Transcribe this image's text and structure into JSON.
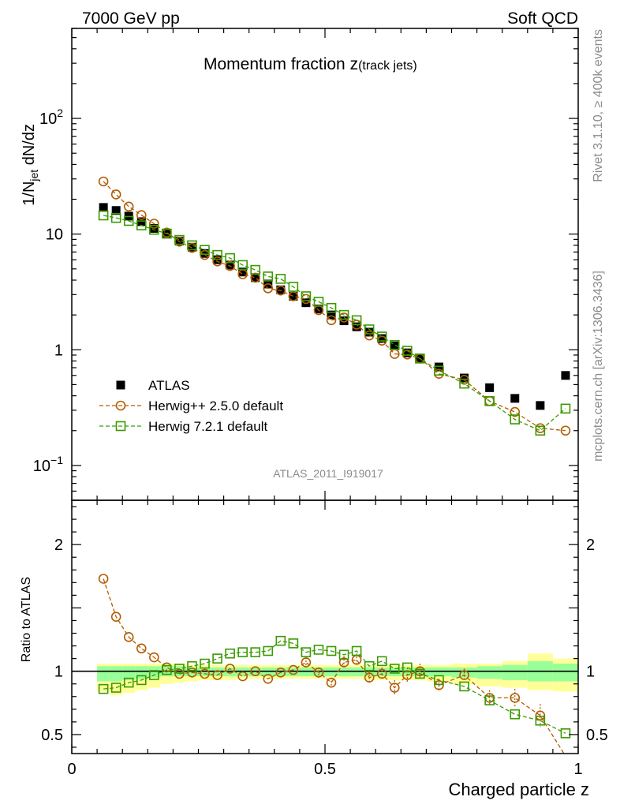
{
  "header": {
    "left": "7000 GeV pp",
    "right": "Soft QCD"
  },
  "side_text": {
    "rivet": "Rivet 3.1.10, ≥ 400k events",
    "mcplots": "mcplots.cern.ch [arXiv:1306.3436]"
  },
  "chart_data": {
    "type": "line",
    "title_main": "Momentum fraction ",
    "title_var": "z",
    "title_sub": "(track jets)",
    "analysis_id": "ATLAS_2011_I919017",
    "xlabel": "Charged particle z",
    "ylabel_prefix": "1/N",
    "ylabel_sub": "jet",
    "ylabel_suffix": " dN/dz",
    "ratio_ylabel": "Ratio to ATLAS",
    "xlim": [
      0,
      1
    ],
    "ylim": [
      0.05,
      600
    ],
    "ratio_ylim": [
      0.35,
      2.35
    ],
    "x_ticks": [
      {
        "value": 0,
        "label": "0"
      },
      {
        "value": 0.5,
        "label": "0.5"
      },
      {
        "value": 1,
        "label": "1"
      }
    ],
    "y_ticks": [
      {
        "value": 0.1,
        "label": "10",
        "sup": "−1"
      },
      {
        "value": 1,
        "label": "1",
        "sup": ""
      },
      {
        "value": 10,
        "label": "10",
        "sup": ""
      },
      {
        "value": 100,
        "label": "10",
        "sup": "2"
      }
    ],
    "ratio_ticks": [
      {
        "value": 0.5,
        "label": "0.5"
      },
      {
        "value": 1,
        "label": "1"
      },
      {
        "value": 2,
        "label": "2"
      }
    ],
    "x": [
      0.0625,
      0.0875,
      0.1125,
      0.1375,
      0.1625,
      0.1875,
      0.2125,
      0.2375,
      0.2625,
      0.2875,
      0.3125,
      0.3375,
      0.3625,
      0.3875,
      0.4125,
      0.4375,
      0.4625,
      0.4875,
      0.5125,
      0.5375,
      0.5625,
      0.5875,
      0.6125,
      0.6375,
      0.6625,
      0.6875,
      0.725,
      0.775,
      0.825,
      0.875,
      0.925,
      0.975
    ],
    "bin_edges": [
      0.05,
      0.075,
      0.1,
      0.125,
      0.15,
      0.175,
      0.2,
      0.225,
      0.25,
      0.275,
      0.3,
      0.325,
      0.35,
      0.375,
      0.4,
      0.425,
      0.45,
      0.475,
      0.5,
      0.525,
      0.55,
      0.575,
      0.6,
      0.625,
      0.65,
      0.675,
      0.7,
      0.75,
      0.8,
      0.85,
      0.9,
      0.95,
      1.0
    ],
    "band_outer": {
      "lo": [
        0.84,
        0.81,
        0.83,
        0.85,
        0.87,
        0.9,
        0.91,
        0.92,
        0.93,
        0.93,
        0.93,
        0.94,
        0.94,
        0.94,
        0.94,
        0.94,
        0.94,
        0.94,
        0.94,
        0.94,
        0.94,
        0.93,
        0.93,
        0.93,
        0.93,
        0.93,
        0.92,
        0.9,
        0.88,
        0.87,
        0.85,
        0.84
      ],
      "hi": [
        1.06,
        1.06,
        1.06,
        1.06,
        1.06,
        1.06,
        1.06,
        1.05,
        1.05,
        1.05,
        1.05,
        1.05,
        1.05,
        1.05,
        1.05,
        1.05,
        1.05,
        1.05,
        1.05,
        1.05,
        1.05,
        1.05,
        1.05,
        1.05,
        1.05,
        1.05,
        1.05,
        1.06,
        1.06,
        1.08,
        1.14,
        1.1
      ]
    },
    "band_inner": {
      "lo": [
        0.92,
        0.92,
        0.93,
        0.94,
        0.95,
        0.96,
        0.96,
        0.96,
        0.96,
        0.96,
        0.96,
        0.96,
        0.96,
        0.96,
        0.96,
        0.96,
        0.96,
        0.96,
        0.96,
        0.96,
        0.96,
        0.96,
        0.96,
        0.96,
        0.96,
        0.96,
        0.96,
        0.95,
        0.94,
        0.93,
        0.92,
        0.92
      ],
      "hi": [
        1.04,
        1.04,
        1.04,
        1.04,
        1.04,
        1.04,
        1.04,
        1.03,
        1.03,
        1.03,
        1.03,
        1.03,
        1.03,
        1.03,
        1.03,
        1.03,
        1.03,
        1.03,
        1.03,
        1.03,
        1.03,
        1.03,
        1.03,
        1.03,
        1.03,
        1.03,
        1.03,
        1.03,
        1.04,
        1.05,
        1.08,
        1.06
      ]
    },
    "series": [
      {
        "name": "ATLAS",
        "color": "#000000",
        "marker": "filled-square",
        "values": [
          17.0,
          16.0,
          14.3,
          12.8,
          11.2,
          10.0,
          8.7,
          7.7,
          6.8,
          6.0,
          5.4,
          4.7,
          4.2,
          3.7,
          3.3,
          2.9,
          2.55,
          2.25,
          2.0,
          1.78,
          1.58,
          1.42,
          1.25,
          1.08,
          0.94,
          0.84,
          0.71,
          0.57,
          0.47,
          0.38,
          0.33,
          0.6
        ],
        "ratio": [
          1,
          1,
          1,
          1,
          1,
          1,
          1,
          1,
          1,
          1,
          1,
          1,
          1,
          1,
          1,
          1,
          1,
          1,
          1,
          1,
          1,
          1,
          1,
          1,
          1,
          1,
          1,
          1,
          1,
          1,
          1,
          1
        ],
        "ratio_err": [
          0,
          0,
          0,
          0,
          0,
          0,
          0,
          0,
          0,
          0,
          0,
          0,
          0,
          0,
          0,
          0,
          0,
          0,
          0,
          0,
          0,
          0,
          0,
          0,
          0,
          0,
          0,
          0,
          0,
          0,
          0,
          0
        ]
      },
      {
        "name": "Herwig++ 2.5.0 default",
        "color": "#b35c00",
        "marker": "open-circle",
        "values": [
          28.5,
          22.0,
          17.3,
          14.6,
          12.3,
          10.3,
          8.6,
          7.6,
          6.6,
          5.8,
          5.3,
          4.5,
          4.2,
          3.4,
          3.25,
          2.9,
          2.75,
          2.2,
          1.8,
          1.9,
          1.65,
          1.33,
          1.2,
          0.92,
          0.91,
          0.84,
          0.62,
          0.55,
          0.36,
          0.29,
          0.21,
          0.2
        ],
        "ratio": [
          1.73,
          1.43,
          1.27,
          1.18,
          1.11,
          1.03,
          0.98,
          0.99,
          0.98,
          0.97,
          1.02,
          0.96,
          1.0,
          0.94,
          0.99,
          1.01,
          1.07,
          0.99,
          0.91,
          1.07,
          1.09,
          0.95,
          0.98,
          0.87,
          0.97,
          1.0,
          0.89,
          0.97,
          0.79,
          0.79,
          0.65,
          0.33
        ],
        "ratio_err": [
          0.01,
          0.01,
          0.01,
          0.01,
          0.01,
          0.01,
          0.01,
          0.02,
          0.02,
          0.02,
          0.02,
          0.02,
          0.03,
          0.03,
          0.03,
          0.03,
          0.04,
          0.04,
          0.04,
          0.05,
          0.05,
          0.05,
          0.05,
          0.06,
          0.06,
          0.06,
          0.05,
          0.05,
          0.06,
          0.07,
          0.09,
          0.1
        ]
      },
      {
        "name": "Herwig 7.2.1 default",
        "color": "#3a9a00",
        "marker": "open-square",
        "values": [
          14.5,
          13.8,
          13.0,
          11.9,
          10.9,
          10.1,
          8.9,
          8.0,
          7.3,
          6.6,
          6.2,
          5.4,
          4.9,
          4.3,
          4.1,
          3.5,
          2.9,
          2.6,
          2.3,
          2.0,
          1.8,
          1.5,
          1.3,
          1.1,
          0.98,
          0.84,
          0.66,
          0.51,
          0.36,
          0.25,
          0.2,
          0.31
        ],
        "ratio": [
          0.86,
          0.87,
          0.91,
          0.93,
          0.97,
          1.01,
          1.02,
          1.04,
          1.06,
          1.1,
          1.14,
          1.15,
          1.15,
          1.16,
          1.24,
          1.22,
          1.15,
          1.17,
          1.16,
          1.13,
          1.16,
          1.04,
          1.08,
          1.02,
          1.03,
          0.98,
          0.93,
          0.88,
          0.77,
          0.66,
          0.61,
          0.51
        ],
        "ratio_err": [
          0.005,
          0.005,
          0.005,
          0.005,
          0.005,
          0.005,
          0.005,
          0.005,
          0.005,
          0.005,
          0.01,
          0.01,
          0.01,
          0.01,
          0.01,
          0.01,
          0.01,
          0.01,
          0.01,
          0.01,
          0.01,
          0.01,
          0.01,
          0.01,
          0.015,
          0.015,
          0.015,
          0.015,
          0.02,
          0.02,
          0.025,
          0.025
        ]
      }
    ],
    "legend": [
      {
        "label": "ATLAS"
      },
      {
        "label": "Herwig++ 2.5.0 default"
      },
      {
        "label": "Herwig 7.2.1 default"
      }
    ],
    "legend_position": "lower-left"
  }
}
